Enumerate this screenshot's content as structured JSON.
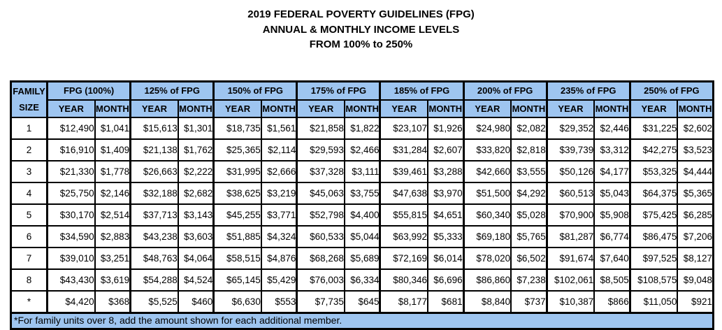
{
  "title": {
    "line1": "2019 FEDERAL POVERTY GUIDELINES (FPG)",
    "line2": "ANNUAL & MONTHLY INCOME LEVELS",
    "line3": "FROM 100% to 250%"
  },
  "table": {
    "family_header": {
      "line1": "FAMILY",
      "line2": "SIZE"
    },
    "groups": [
      "FPG (100%)",
      "125% of FPG",
      "150% of FPG",
      "175% of FPG",
      "185% of FPG",
      "200% of FPG",
      "235% of FPG",
      "250% of FPG"
    ],
    "subheaders": {
      "year": "YEAR",
      "month": "MONTH"
    },
    "rows": [
      {
        "size": "1",
        "values": [
          "$12,490",
          "$1,041",
          "$15,613",
          "$1,301",
          "$18,735",
          "$1,561",
          "$21,858",
          "$1,822",
          "$23,107",
          "$1,926",
          "$24,980",
          "$2,082",
          "$29,352",
          "$2,446",
          "$31,225",
          "$2,602"
        ]
      },
      {
        "size": "2",
        "values": [
          "$16,910",
          "$1,409",
          "$21,138",
          "$1,762",
          "$25,365",
          "$2,114",
          "$29,593",
          "$2,466",
          "$31,284",
          "$2,607",
          "$33,820",
          "$2,818",
          "$39,739",
          "$3,312",
          "$42,275",
          "$3,523"
        ]
      },
      {
        "size": "3",
        "values": [
          "$21,330",
          "$1,778",
          "$26,663",
          "$2,222",
          "$31,995",
          "$2,666",
          "$37,328",
          "$3,111",
          "$39,461",
          "$3,288",
          "$42,660",
          "$3,555",
          "$50,126",
          "$4,177",
          "$53,325",
          "$4,444"
        ]
      },
      {
        "size": "4",
        "values": [
          "$25,750",
          "$2,146",
          "$32,188",
          "$2,682",
          "$38,625",
          "$3,219",
          "$45,063",
          "$3,755",
          "$47,638",
          "$3,970",
          "$51,500",
          "$4,292",
          "$60,513",
          "$5,043",
          "$64,375",
          "$5,365"
        ]
      },
      {
        "size": "5",
        "values": [
          "$30,170",
          "$2,514",
          "$37,713",
          "$3,143",
          "$45,255",
          "$3,771",
          "$52,798",
          "$4,400",
          "$55,815",
          "$4,651",
          "$60,340",
          "$5,028",
          "$70,900",
          "$5,908",
          "$75,425",
          "$6,285"
        ]
      },
      {
        "size": "6",
        "values": [
          "$34,590",
          "$2,883",
          "$43,238",
          "$3,603",
          "$51,885",
          "$4,324",
          "$60,533",
          "$5,044",
          "$63,992",
          "$5,333",
          "$69,180",
          "$5,765",
          "$81,287",
          "$6,774",
          "$86,475",
          "$7,206"
        ]
      },
      {
        "size": "7",
        "values": [
          "$39,010",
          "$3,251",
          "$48,763",
          "$4,064",
          "$58,515",
          "$4,876",
          "$68,268",
          "$5,689",
          "$72,169",
          "$6,014",
          "$78,020",
          "$6,502",
          "$91,674",
          "$7,640",
          "$97,525",
          "$8,127"
        ]
      },
      {
        "size": "8",
        "values": [
          "$43,430",
          "$3,619",
          "$54,288",
          "$4,524",
          "$65,145",
          "$5,429",
          "$76,003",
          "$6,334",
          "$80,346",
          "$6,696",
          "$86,860",
          "$7,238",
          "$102,061",
          "$8,505",
          "$108,575",
          "$9,048"
        ]
      },
      {
        "size": "*",
        "values": [
          "$4,420",
          "$368",
          "$5,525",
          "$460",
          "$6,630",
          "$553",
          "$7,735",
          "$645",
          "$8,177",
          "$681",
          "$8,840",
          "$737",
          "$10,387",
          "$866",
          "$11,050",
          "$921"
        ]
      }
    ],
    "footnote": "*For family units over 8, add the amount shown for each additional member."
  },
  "colors": {
    "header_bg": "#9ec5f0",
    "border": "#000000",
    "text": "#000000",
    "background": "#ffffff"
  },
  "layout_hints": {
    "columns_per_group": 2,
    "column_width_family": 52,
    "column_width_year": 68,
    "column_width_month": 51
  }
}
